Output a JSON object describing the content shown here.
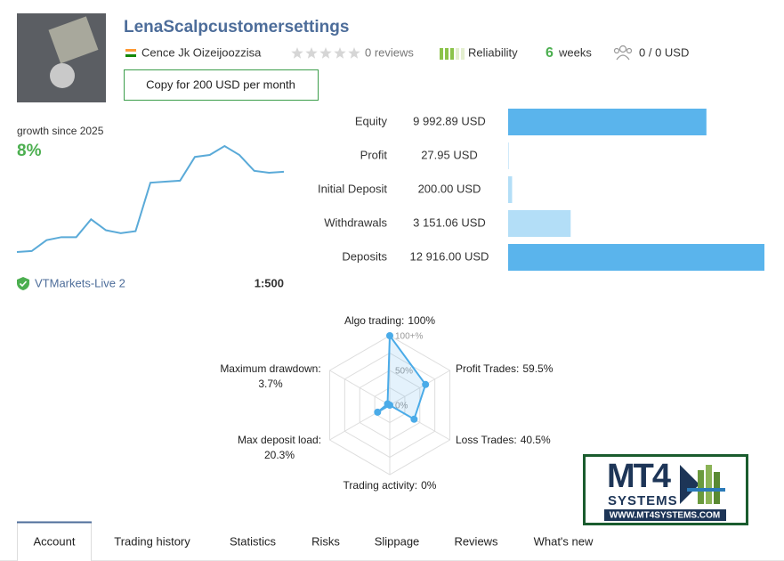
{
  "header": {
    "title": "LenaScalpcustomersettings",
    "author": "Cence Jk Oizeijoozzisa",
    "reviews": "0 reviews",
    "reliability": "Reliability",
    "duration": "6",
    "duration_unit": "weeks",
    "subscribers": "0 / 0 USD",
    "button": "Copy for 200 USD per month"
  },
  "growth": {
    "label": "growth since 2025",
    "value": "8%",
    "color": "#5aaad8",
    "series": [
      0,
      0.1,
      1.2,
      1.5,
      1.5,
      3.3,
      2.2,
      1.9,
      2.1,
      7.0,
      7.1,
      7.2,
      9.6,
      9.8,
      10.7,
      9.8,
      8.2,
      8.0,
      8.1
    ],
    "broker": "VTMarkets-Live 2",
    "leverage": "1:500"
  },
  "stats": [
    {
      "name": "Equity",
      "value": 9992.89,
      "value_label": "9 992.89 USD",
      "color": "#5ab4ec"
    },
    {
      "name": "Profit",
      "value": 27.95,
      "value_label": "27.95 USD",
      "color": "#b3def7"
    },
    {
      "name": "Initial Deposit",
      "value": 200,
      "value_label": "200.00 USD",
      "color": "#b3def7"
    },
    {
      "name": "Withdrawals",
      "value": 3151.06,
      "value_label": "3 151.06 USD",
      "color": "#b3def7"
    },
    {
      "name": "Deposits",
      "value": 12916,
      "value_label": "12 916.00 USD",
      "color": "#5ab4ec"
    }
  ],
  "radar": {
    "color": "#4aabe8",
    "axes": [
      {
        "name": "Algo trading:",
        "value": 100,
        "value_label": "100%"
      },
      {
        "name": "Profit Trades:",
        "value": 59.5,
        "value_label": "59.5%"
      },
      {
        "name": "Loss Trades:",
        "value": 40.5,
        "value_label": "40.5%"
      },
      {
        "name": "Trading activity:",
        "value": 0,
        "value_label": "0%"
      },
      {
        "name": "Max deposit load:",
        "value": 20.3,
        "value_label": "20.3%"
      },
      {
        "name": "Maximum drawdown:",
        "value": 3.7,
        "value_label": "3.7%"
      }
    ],
    "ticks": [
      {
        "value": 0,
        "label": "0%"
      },
      {
        "value": 50,
        "label": "50%"
      },
      {
        "value": 100,
        "label": "100+%"
      }
    ]
  },
  "logo": {
    "brand": "MT4",
    "word": "SYSTEMS",
    "url": "WWW.MT4SYSTEMS.COM"
  },
  "tabs": [
    "Account",
    "Trading history",
    "Statistics",
    "Risks",
    "Slippage",
    "Reviews",
    "What's new"
  ]
}
